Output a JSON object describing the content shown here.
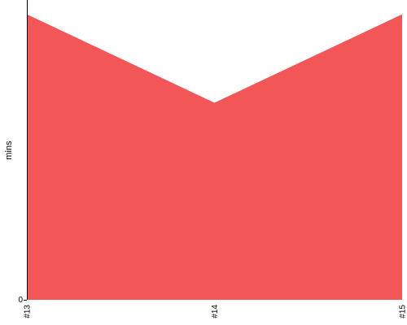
{
  "chart_data": {
    "type": "area",
    "categories": [
      "#13",
      "#14",
      "#15"
    ],
    "series": [
      {
        "values": [
          1.0,
          0.69,
          1.0
        ],
        "color": "#f25656"
      }
    ],
    "xlabel": "",
    "ylabel": "mins",
    "y_ticks": [
      "0"
    ],
    "ylim": [
      0,
      1.05
    ],
    "grid": false,
    "legend": "none"
  }
}
